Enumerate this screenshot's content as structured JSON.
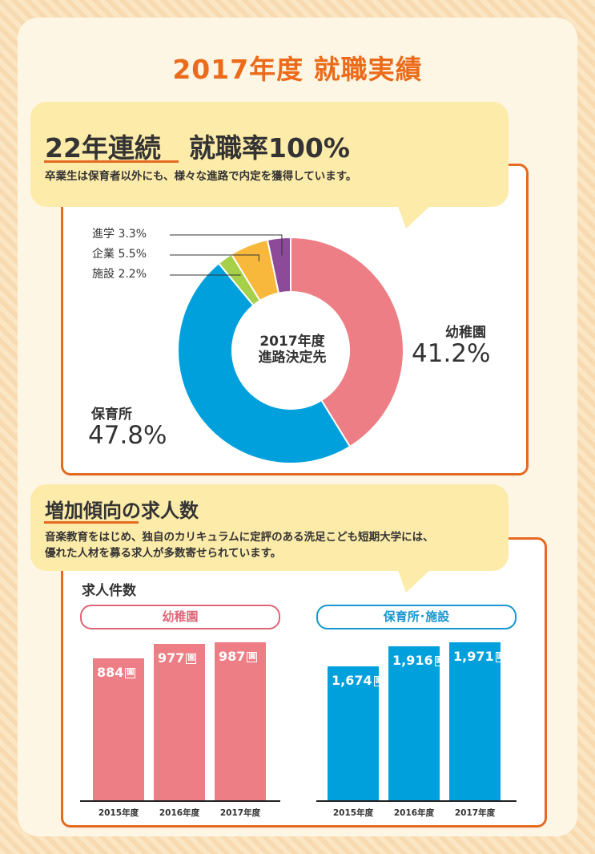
{
  "page_title": "2017年度 就職実績",
  "section1": {
    "heading_a": "22年連続",
    "heading_b": "就職率100%",
    "subtitle": "卒業生は保育者以外にも、様々な進路で内定を獲得しています。"
  },
  "section2": {
    "heading": "増加傾向の求人数",
    "subtitle_line1": "音楽教育をはじめ、独自のカリキュラムに定評のある洗足こども短期大学には、",
    "subtitle_line2": "優れた人材を募る求人が多数寄せられています。"
  },
  "colors": {
    "accent": "#e56a22",
    "kindergarten": "#ee7e85",
    "nursery": "#00a0dd",
    "facility": "#a6d04a",
    "company": "#f7b83b",
    "advance": "#8d4a98"
  },
  "chart_data": [
    {
      "type": "pie",
      "title": "2017年度\n進路決定先",
      "title_line1": "2017年度",
      "title_line2": "進路決定先",
      "slices": [
        {
          "label": "幼稚園",
          "value": 41.2,
          "display": "41.2%",
          "color": "#ee7e85"
        },
        {
          "label": "保育所",
          "value": 47.8,
          "display": "47.8%",
          "color": "#00a0dd"
        },
        {
          "label": "施設",
          "value": 2.2,
          "display": "施設 2.2%",
          "color": "#a6d04a"
        },
        {
          "label": "企業",
          "value": 5.5,
          "display": "企業 5.5%",
          "color": "#f7b83b"
        },
        {
          "label": "進学",
          "value": 3.3,
          "display": "進学 3.3%",
          "color": "#8d4a98"
        }
      ]
    },
    {
      "type": "bar",
      "title": "求人件数",
      "panel_label": "幼稚園",
      "categories": [
        "2015年度",
        "2016年度",
        "2017年度"
      ],
      "values": [
        884,
        977,
        987
      ],
      "value_labels": [
        "884",
        "977",
        "987"
      ],
      "unit": "園",
      "ylim": [
        0,
        1100
      ],
      "color": "#ee7e85"
    },
    {
      "type": "bar",
      "panel_label": "保育所･施設",
      "categories": [
        "2015年度",
        "2016年度",
        "2017年度"
      ],
      "values": [
        1674,
        1916,
        1971
      ],
      "value_labels": [
        "1,674",
        "1,916",
        "1,971"
      ],
      "unit": "園",
      "ylim": [
        0,
        2200
      ],
      "color": "#00a0dd"
    }
  ]
}
